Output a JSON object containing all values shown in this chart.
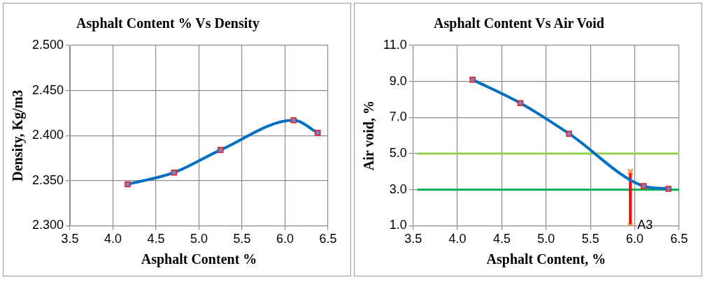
{
  "chart_data": [
    {
      "type": "line",
      "title": "Asphalt Content % Vs Density",
      "xlabel": "Asphalt Content %",
      "ylabel": "Density, Kg/m3",
      "xlim": [
        3.5,
        6.5
      ],
      "xticks": [
        3.5,
        {
          "value": 4,
          "label": "4.0"
        },
        4.5,
        {
          "value": 5,
          "label": "5.0"
        },
        5.5,
        {
          "value": 6,
          "label": "6.0"
        },
        6.5
      ],
      "ylim": [
        2.3,
        2.5
      ],
      "yticks": [
        {
          "value": 2.3,
          "label": "2.300"
        },
        {
          "value": 2.35,
          "label": "2.350"
        },
        {
          "value": 2.4,
          "label": "2.400"
        },
        {
          "value": 2.45,
          "label": "2.450"
        },
        {
          "value": 2.5,
          "label": "2.500"
        }
      ],
      "grid": true,
      "legend": false,
      "marker": "square",
      "series": [
        {
          "color": "#0070c0",
          "x": [
            4.17,
            4.71,
            5.25,
            6.1,
            6.38
          ],
          "values": [
            2.346,
            2.359,
            2.384,
            2.417,
            2.403
          ]
        }
      ]
    },
    {
      "type": "line",
      "title": "Asphalt Content Vs Air Void",
      "xlabel": "Asphalt Content, %",
      "ylabel": "Air void, %",
      "xlim": [
        3.5,
        6.5
      ],
      "xticks": [
        3.5,
        {
          "value": 4,
          "label": "4.0"
        },
        4.5,
        {
          "value": 5,
          "label": "5.0"
        },
        5.5,
        {
          "value": 6,
          "label": "6.0"
        },
        6.5
      ],
      "ylim": [
        1,
        11
      ],
      "yticks": [
        {
          "value": 1,
          "label": "1.0"
        },
        {
          "value": 3,
          "label": "3.0"
        },
        {
          "value": 5,
          "label": "5.0"
        },
        {
          "value": 7,
          "label": "7.0"
        },
        {
          "value": 9,
          "label": "9.0"
        },
        {
          "value": 11,
          "label": "11.0"
        }
      ],
      "grid": true,
      "legend": false,
      "marker": "square",
      "series": [
        {
          "color": "#0070c0",
          "x": [
            4.17,
            4.71,
            5.26,
            6.1,
            6.38
          ],
          "values": [
            9.1,
            7.8,
            6.1,
            3.2,
            3.05
          ]
        },
        {
          "color": "#ff0000",
          "marker": "cross",
          "x": [
            5.95,
            5.95
          ],
          "values": [
            1.0,
            4.0
          ]
        }
      ],
      "ref_lines": [
        {
          "axis": "y",
          "value": 5,
          "color": "#92d050"
        },
        {
          "axis": "y",
          "value": 3,
          "color": "#00b050"
        }
      ],
      "annotations": [
        {
          "text": "A3",
          "x": 5.95,
          "y": 1.0
        }
      ]
    }
  ]
}
